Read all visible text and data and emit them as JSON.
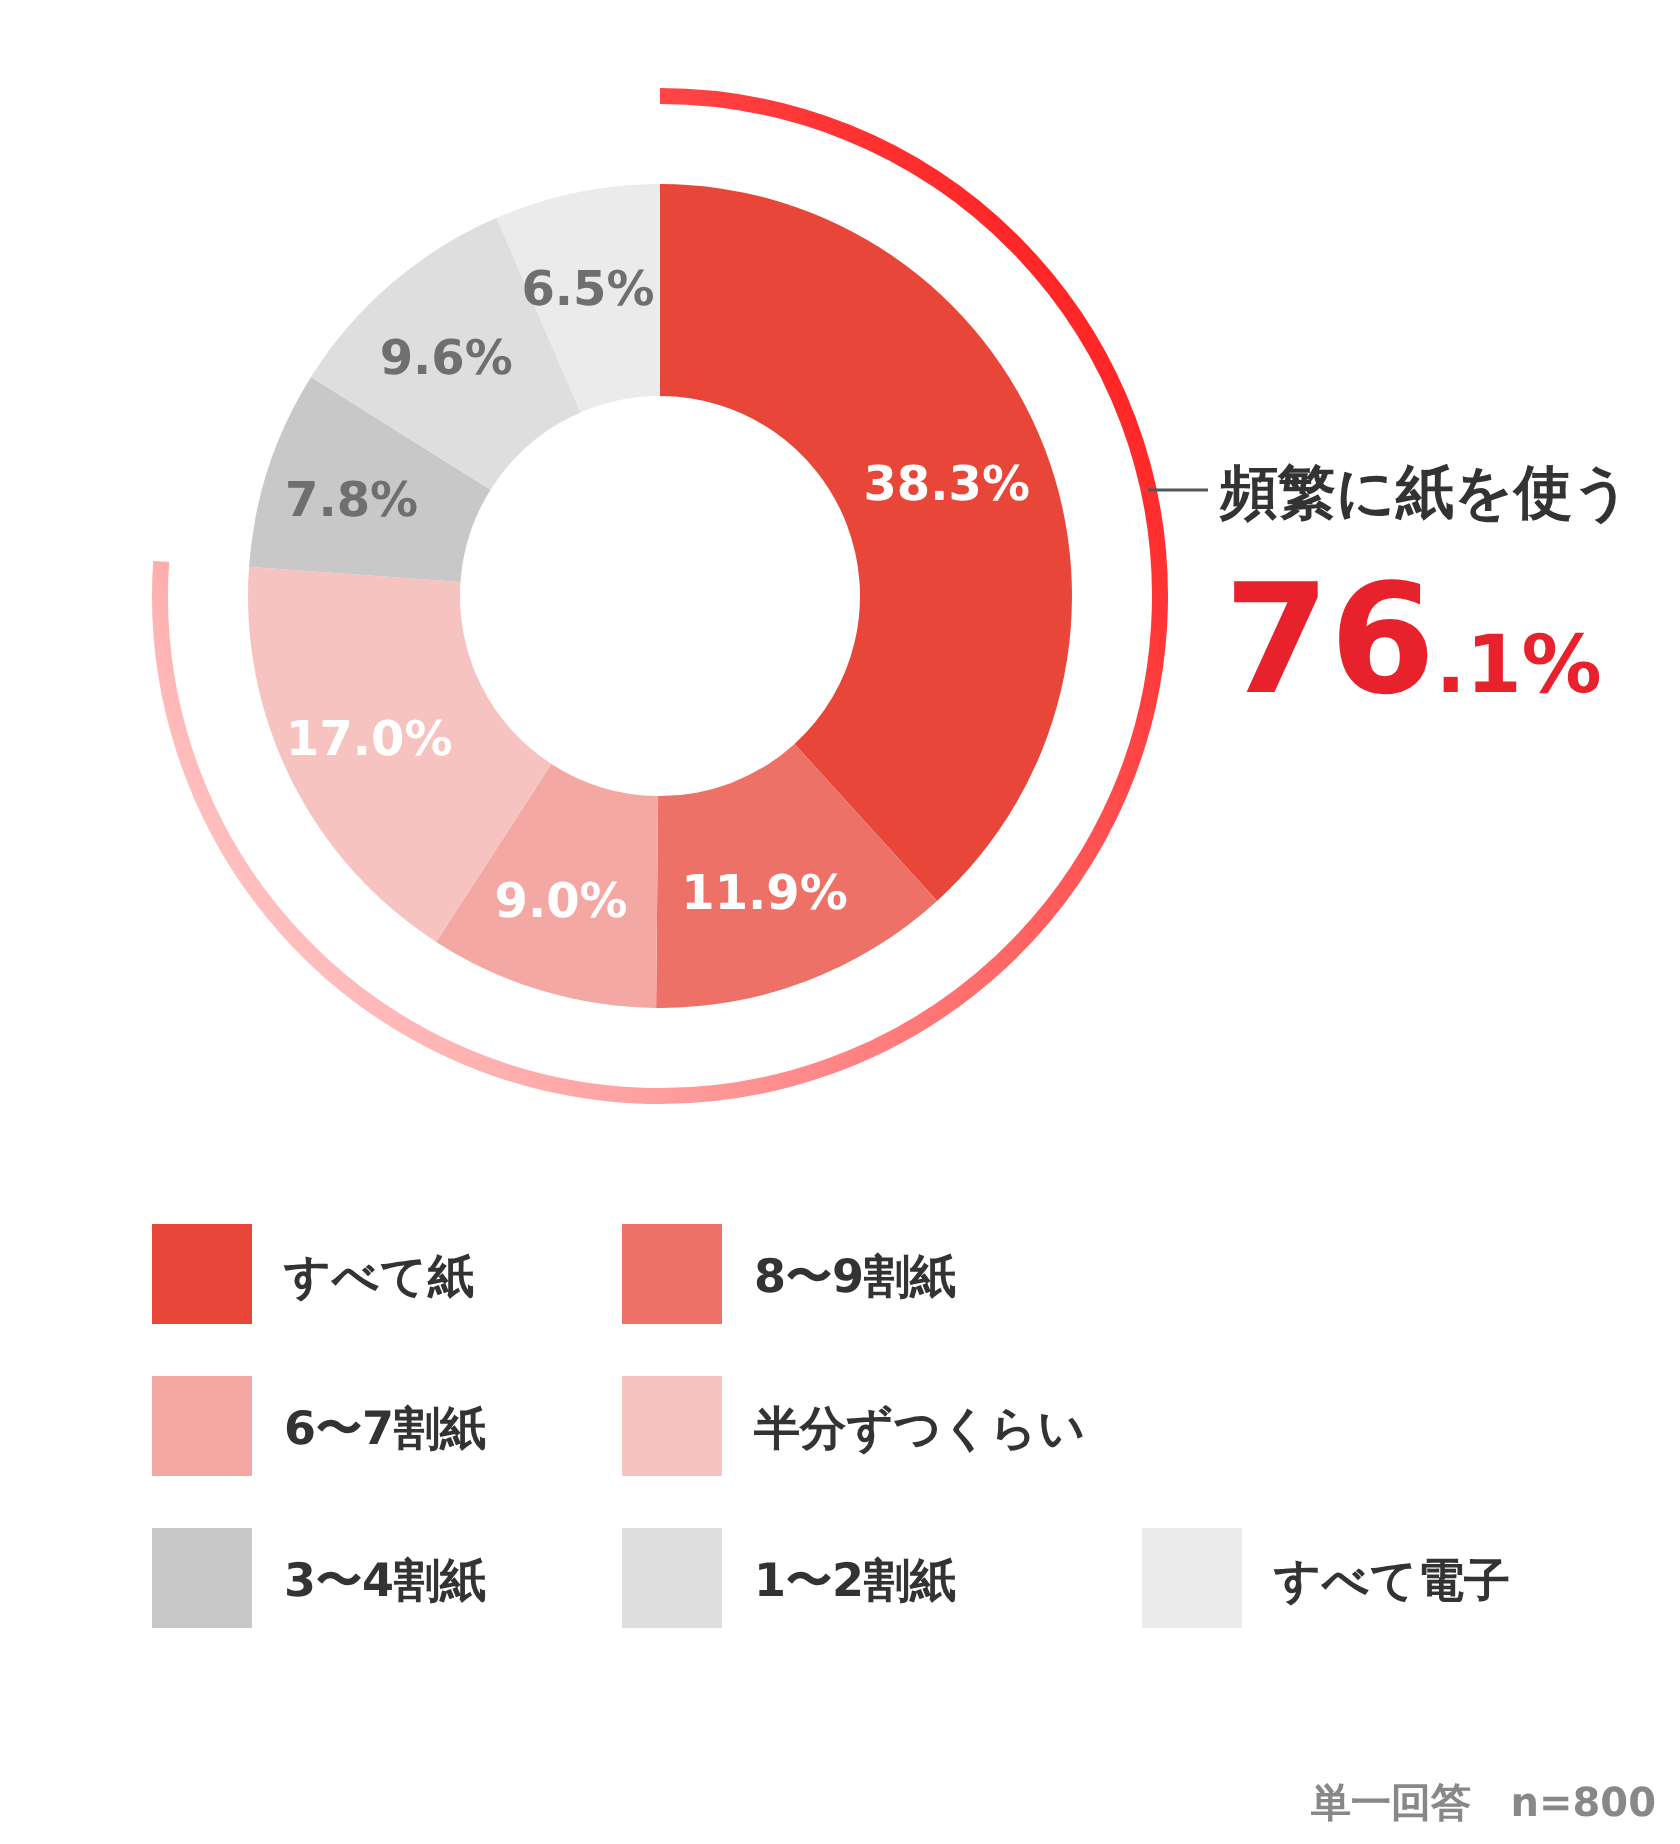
{
  "chart_data": {
    "type": "donut",
    "categories": [
      "すべて紙",
      "8〜9割紙",
      "6〜7割紙",
      "半分ずつくらい",
      "3〜4割紙",
      "1〜2割紙",
      "すべて電子"
    ],
    "values": [
      38.3,
      11.9,
      9.0,
      17.0,
      7.8,
      9.6,
      6.5
    ],
    "colors": [
      "#e9463a",
      "#ee7168",
      "#f3a8a3",
      "#f7c3c0",
      "#c8c8c8",
      "#dedede",
      "#ebebeb"
    ],
    "value_labels": [
      "38.3%",
      "11.9%",
      "9.0%",
      "17.0%",
      "7.8%",
      "9.6%",
      "6.5%"
    ],
    "legend": "bottom",
    "annotations": [
      "頻繁に紙を使う",
      "76.1%",
      "単一回答　n=800"
    ]
  }
}
